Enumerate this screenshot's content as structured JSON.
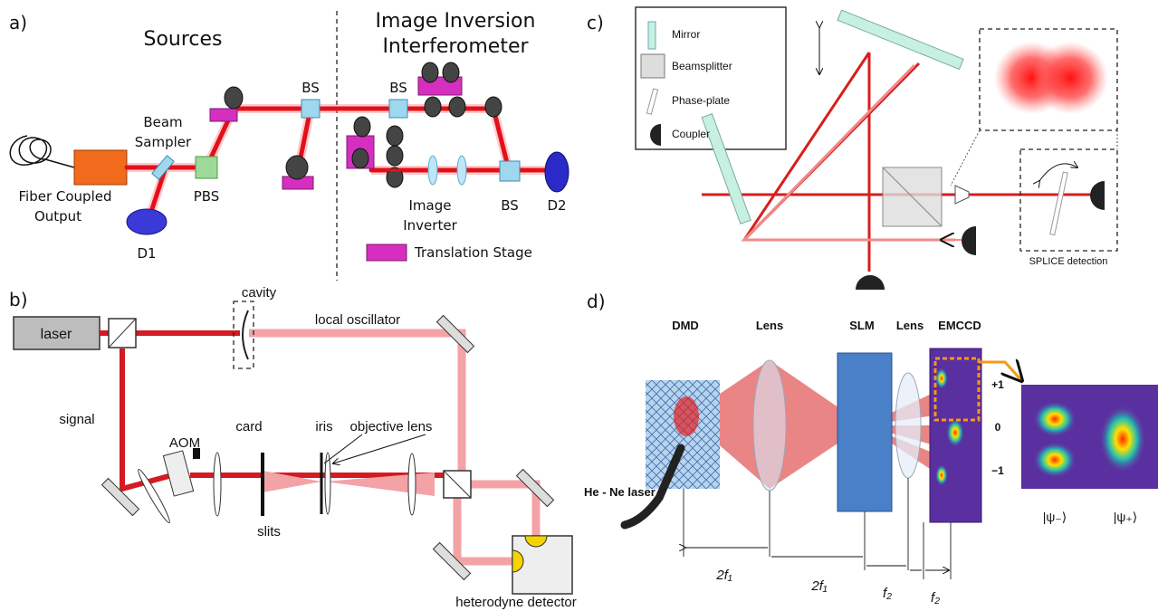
{
  "panel_a": {
    "label": "a)",
    "sources_title": "Sources",
    "interferometer_title": [
      "Image Inversion",
      "Interferometer"
    ],
    "bs_1": "BS",
    "bs_2": "BS",
    "bs_3": "BS",
    "beam_sampler": [
      "Beam",
      "Sampler"
    ],
    "fiber_output": [
      "Fiber Coupled",
      "Output"
    ],
    "pbs": "PBS",
    "d1": "D1",
    "d2": "D2",
    "image_inverter": [
      "Image",
      "Inverter"
    ],
    "translation_stage": "Translation Stage"
  },
  "panel_b": {
    "label": "b)",
    "cavity": "cavity",
    "laser": "laser",
    "local_oscillator": "local oscillator",
    "signal": "signal",
    "aom": "AOM",
    "card": "card",
    "iris": "iris",
    "objective_lens": "objective lens",
    "slits": "slits",
    "heterodyne_detector": "heterodyne detector"
  },
  "panel_c": {
    "label": "c)",
    "legend": [
      "Mirror",
      "Beamsplitter",
      "Phase-plate",
      "Coupler"
    ],
    "splice_detection": "SPLICE detection"
  },
  "panel_d": {
    "label": "d)",
    "dmd": "DMD",
    "lens_1": "Lens",
    "slm": "SLM",
    "lens_2": "Lens",
    "emccd": "EMCCD",
    "laser": "He - Ne laser",
    "orders": [
      "+1",
      "0",
      "−1"
    ],
    "states": [
      "|ψ₋⟩",
      "|ψ₊⟩"
    ],
    "distances": [
      "2f₁",
      "2f₁",
      "f₂",
      "f₂"
    ]
  }
}
